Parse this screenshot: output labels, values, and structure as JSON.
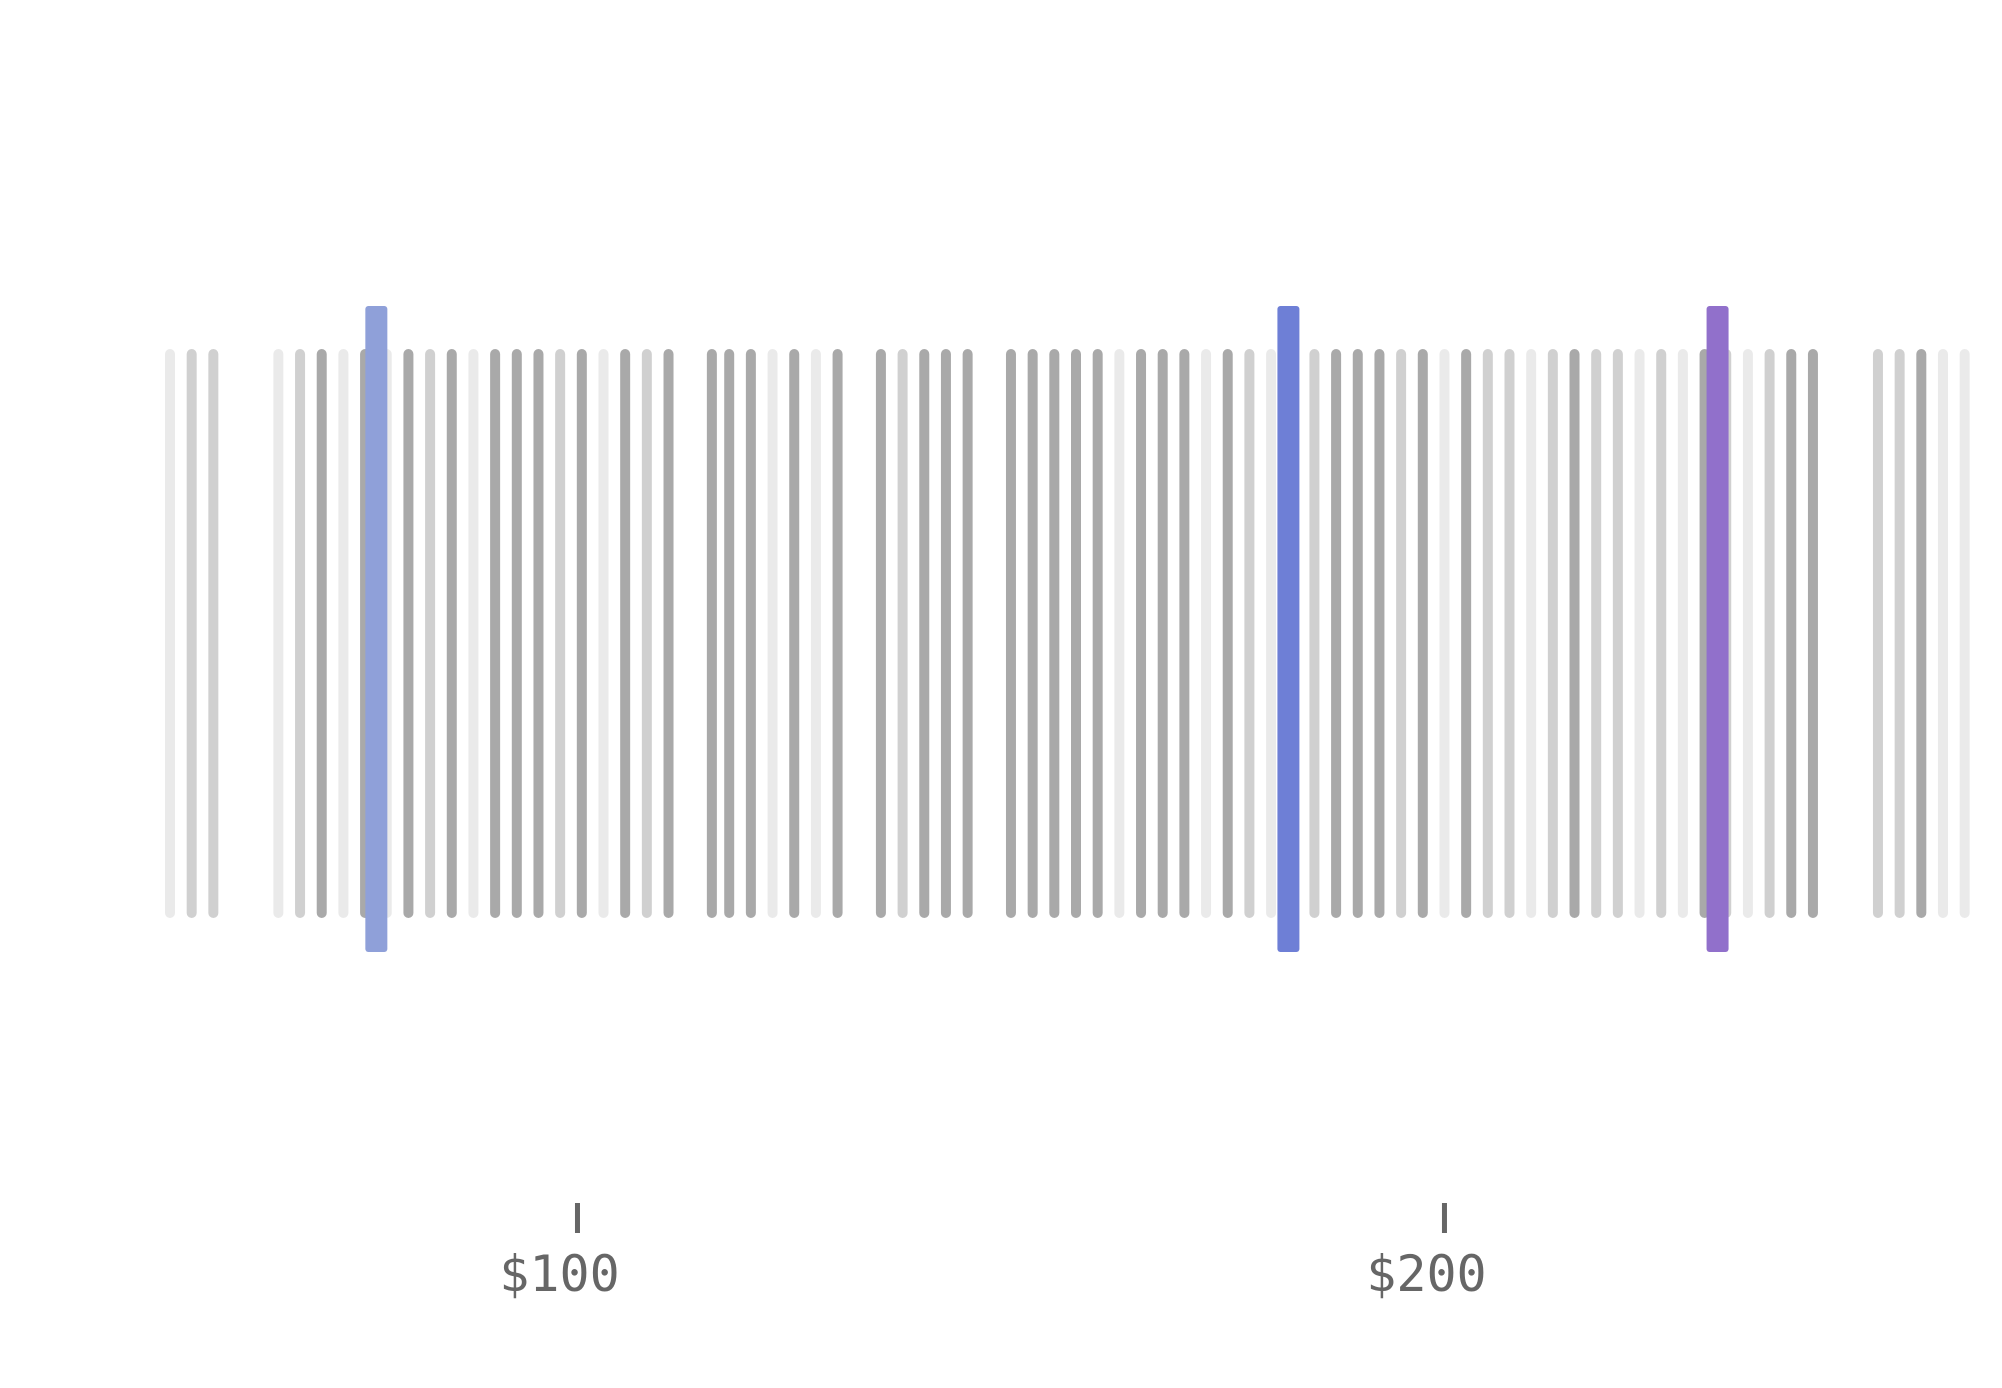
{
  "chart_data": {
    "type": "strip",
    "x_axis": {
      "ticks": [
        {
          "value": 100,
          "label": "$100"
        },
        {
          "value": 200,
          "label": "$200"
        }
      ],
      "range": [
        53,
        262
      ]
    },
    "colors": {
      "mark_light": "#e6e6e6",
      "mark_mid": "#c8c8c8",
      "mark_dark": "#9a9a9a",
      "highlight_1": "#8fa0d9",
      "highlight_2": "#6e7fd6",
      "highlight_3": "#9170cb",
      "tick": "#666666"
    },
    "marks": [
      {
        "x": 53.0,
        "shade": "light"
      },
      {
        "x": 55.5,
        "shade": "mid"
      },
      {
        "x": 58.0,
        "shade": "mid"
      },
      {
        "x": 65.5,
        "shade": "light"
      },
      {
        "x": 68.0,
        "shade": "mid"
      },
      {
        "x": 70.5,
        "shade": "dark"
      },
      {
        "x": 73.0,
        "shade": "light"
      },
      {
        "x": 75.5,
        "shade": "dark"
      },
      {
        "x": 78.0,
        "shade": "light"
      },
      {
        "x": 80.5,
        "shade": "dark"
      },
      {
        "x": 83.0,
        "shade": "mid"
      },
      {
        "x": 85.5,
        "shade": "dark"
      },
      {
        "x": 88.0,
        "shade": "light"
      },
      {
        "x": 90.5,
        "shade": "dark"
      },
      {
        "x": 93.0,
        "shade": "dark"
      },
      {
        "x": 95.5,
        "shade": "dark"
      },
      {
        "x": 98.0,
        "shade": "mid"
      },
      {
        "x": 100.5,
        "shade": "dark"
      },
      {
        "x": 103.0,
        "shade": "light"
      },
      {
        "x": 105.5,
        "shade": "dark"
      },
      {
        "x": 108.0,
        "shade": "mid"
      },
      {
        "x": 110.5,
        "shade": "dark"
      },
      {
        "x": 115.5,
        "shade": "dark"
      },
      {
        "x": 117.5,
        "shade": "dark"
      },
      {
        "x": 120.0,
        "shade": "dark"
      },
      {
        "x": 122.5,
        "shade": "light"
      },
      {
        "x": 125.0,
        "shade": "dark"
      },
      {
        "x": 127.5,
        "shade": "light"
      },
      {
        "x": 130.0,
        "shade": "dark"
      },
      {
        "x": 135.0,
        "shade": "dark"
      },
      {
        "x": 137.5,
        "shade": "mid"
      },
      {
        "x": 140.0,
        "shade": "dark"
      },
      {
        "x": 142.5,
        "shade": "dark"
      },
      {
        "x": 145.0,
        "shade": "dark"
      },
      {
        "x": 150.0,
        "shade": "dark"
      },
      {
        "x": 152.5,
        "shade": "dark"
      },
      {
        "x": 155.0,
        "shade": "dark"
      },
      {
        "x": 157.5,
        "shade": "dark"
      },
      {
        "x": 160.0,
        "shade": "dark"
      },
      {
        "x": 162.5,
        "shade": "light"
      },
      {
        "x": 165.0,
        "shade": "dark"
      },
      {
        "x": 167.5,
        "shade": "dark"
      },
      {
        "x": 170.0,
        "shade": "dark"
      },
      {
        "x": 172.5,
        "shade": "light"
      },
      {
        "x": 175.0,
        "shade": "dark"
      },
      {
        "x": 177.5,
        "shade": "mid"
      },
      {
        "x": 180.0,
        "shade": "light"
      },
      {
        "x": 182.5,
        "shade": "dark"
      },
      {
        "x": 185.0,
        "shade": "mid"
      },
      {
        "x": 187.5,
        "shade": "dark"
      },
      {
        "x": 190.0,
        "shade": "dark"
      },
      {
        "x": 192.5,
        "shade": "dark"
      },
      {
        "x": 195.0,
        "shade": "mid"
      },
      {
        "x": 197.5,
        "shade": "dark"
      },
      {
        "x": 200.0,
        "shade": "light"
      },
      {
        "x": 202.5,
        "shade": "dark"
      },
      {
        "x": 205.0,
        "shade": "mid"
      },
      {
        "x": 207.5,
        "shade": "mid"
      },
      {
        "x": 210.0,
        "shade": "light"
      },
      {
        "x": 212.5,
        "shade": "mid"
      },
      {
        "x": 215.0,
        "shade": "dark"
      },
      {
        "x": 217.5,
        "shade": "mid"
      },
      {
        "x": 220.0,
        "shade": "mid"
      },
      {
        "x": 222.5,
        "shade": "light"
      },
      {
        "x": 225.0,
        "shade": "mid"
      },
      {
        "x": 227.5,
        "shade": "light"
      },
      {
        "x": 230.0,
        "shade": "dark"
      },
      {
        "x": 232.5,
        "shade": "mid"
      },
      {
        "x": 235.0,
        "shade": "light"
      },
      {
        "x": 237.5,
        "shade": "mid"
      },
      {
        "x": 240.0,
        "shade": "dark"
      },
      {
        "x": 242.5,
        "shade": "dark"
      },
      {
        "x": 250.0,
        "shade": "mid"
      },
      {
        "x": 252.5,
        "shade": "mid"
      },
      {
        "x": 255.0,
        "shade": "dark"
      },
      {
        "x": 257.5,
        "shade": "light"
      },
      {
        "x": 260.0,
        "shade": "light"
      }
    ],
    "highlights": [
      {
        "x": 76.8,
        "color_key": "highlight_1"
      },
      {
        "x": 182.0,
        "color_key": "highlight_2"
      },
      {
        "x": 231.5,
        "color_key": "highlight_3"
      }
    ]
  }
}
